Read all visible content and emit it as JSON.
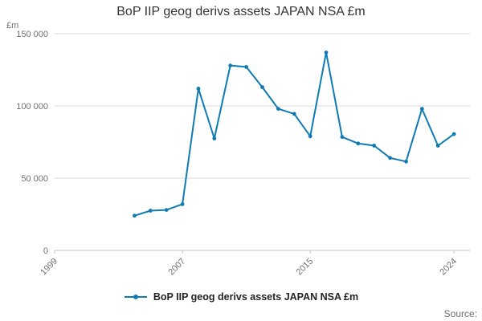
{
  "footer": {
    "source_label": "Source:"
  },
  "chart_data": {
    "type": "line",
    "title": "BoP IIP geog derivs assets JAPAN NSA £m",
    "ylabel": "£m",
    "xlabel": "",
    "series_name": "BoP IIP geog derivs assets JAPAN NSA £m",
    "x": [
      2004,
      2005,
      2006,
      2007,
      2008,
      2009,
      2010,
      2011,
      2012,
      2013,
      2014,
      2015,
      2016,
      2017,
      2018,
      2019,
      2020,
      2021,
      2022,
      2023,
      2024
    ],
    "values": [
      24000,
      27500,
      28000,
      32000,
      112000,
      77500,
      128000,
      127000,
      113000,
      98000,
      94500,
      79000,
      137000,
      78500,
      74000,
      72500,
      64000,
      61500,
      98000,
      72500,
      80500
    ],
    "x_ticks": [
      1999,
      2007,
      2015,
      2024
    ],
    "x_tick_labels": [
      "1999",
      "2007",
      "2015",
      "2024"
    ],
    "y_ticks": [
      0,
      50000,
      100000,
      150000
    ],
    "y_tick_labels": [
      "0",
      "50 000",
      "100 000",
      "150 000"
    ],
    "xlim": [
      1999,
      2025
    ],
    "ylim": [
      0,
      150000
    ],
    "grid": "horizontal",
    "legend_position": "bottom",
    "line_color": "#0f7bb4"
  }
}
